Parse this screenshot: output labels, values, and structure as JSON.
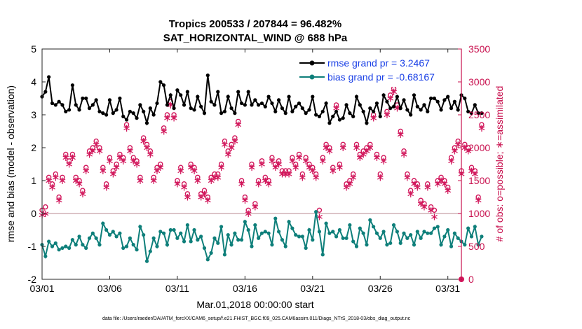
{
  "chart_data": {
    "type": "line",
    "title": "Tropics 200533 / 207844 = 96.482%",
    "subtitle": "SAT_HORIZONTAL_WIND @ 688 hPa",
    "xlabel": "Mar.01,2018 00:00:00 start",
    "ylabel": "rmse and bias (model - observation)",
    "y2label": "# of obs: o=possible; ∗=assimilated",
    "footer": "data file: /Users/raeder/DAI/ATM_forcXX/CAM6_setup/f.e21.FHIST_BGC.f09_025.CAM6assim.011/Diags_NTrS_2018-03/obs_diag_output.nc",
    "x_tick_labels": [
      "03/01",
      "03/06",
      "03/11",
      "03/16",
      "03/21",
      "03/26",
      "03/31"
    ],
    "x_tick_days": [
      0,
      5,
      10,
      15,
      20,
      25,
      30
    ],
    "xlim": [
      0,
      31
    ],
    "ylim": [
      -2,
      5
    ],
    "y_ticks": [
      "-2",
      "-1",
      "0",
      "1",
      "2",
      "3",
      "4",
      "5"
    ],
    "y2lim": [
      0,
      3500
    ],
    "y2_ticks": [
      "0",
      "500",
      "1000",
      "1500",
      "2000",
      "2500",
      "3000",
      "3500"
    ],
    "grid": false,
    "legend_position": "top-right",
    "colors": {
      "rmse": "#000000",
      "bias": "#0e7f7a",
      "obs": "#d1155a",
      "zero_line": "#c8a0a8",
      "legend_text": "#1a40e6"
    },
    "samples_per_day": 4,
    "series": [
      {
        "name": "rmse grand pr = 3.2467",
        "axis": "left",
        "values": [
          3.55,
          3.7,
          4.15,
          3.35,
          3.3,
          3.4,
          3.3,
          3.1,
          3.15,
          3.9,
          3.3,
          3.15,
          3.5,
          3.5,
          3.2,
          3.3,
          3.45,
          3.1,
          3.05,
          3.0,
          3.45,
          3.05,
          3.15,
          3.5,
          2.95,
          2.85,
          3.1,
          3.05,
          2.9,
          3.3,
          3.1,
          2.75,
          3.2,
          3.0,
          3.35,
          4.0,
          3.9,
          3.3,
          3.6,
          3.2,
          3.75,
          3.6,
          3.3,
          3.7,
          3.2,
          3.15,
          3.55,
          3.25,
          3.05,
          4.2,
          3.4,
          3.3,
          3.7,
          3.05,
          3.1,
          3.55,
          3.2,
          3.05,
          3.7,
          3.35,
          3.3,
          3.7,
          3.3,
          3.45,
          3.3,
          3.35,
          3.25,
          3.55,
          3.35,
          3.1,
          3.45,
          3.2,
          3.05,
          3.55,
          3.1,
          3.25,
          3.35,
          3.2,
          3.05,
          3.15,
          3.55,
          3.0,
          2.95,
          3.1,
          3.35,
          2.75,
          2.95,
          3.1,
          2.85,
          2.9,
          3.3,
          3.05,
          2.95,
          3.55,
          3.3,
          3.1,
          2.75,
          3.2,
          3.1,
          3.35,
          2.95,
          3.6,
          3.4,
          3.2,
          3.25,
          3.55,
          3.2,
          3.45,
          3.15,
          3.0,
          3.6,
          3.25,
          3.15,
          3.3,
          3.1,
          3.5,
          3.5,
          3.4,
          3.15,
          3.45,
          3.55,
          3.2,
          3.4,
          3.15,
          3.6,
          3.5,
          3.1,
          3.05,
          3.3,
          3.05,
          3.05
        ]
      },
      {
        "name": "bias grand pr = -0.68167",
        "axis": "left",
        "values": [
          -0.95,
          -1.3,
          -0.85,
          -1.0,
          -0.9,
          -1.1,
          -1.05,
          -1.0,
          -1.05,
          -0.8,
          -0.95,
          -0.7,
          -0.95,
          -1.05,
          -0.75,
          -0.6,
          -0.75,
          -0.95,
          -0.3,
          -0.5,
          -0.65,
          -0.55,
          -0.7,
          -0.6,
          -1.05,
          -1.0,
          -0.75,
          -0.95,
          -1.1,
          -0.4,
          -0.65,
          -1.45,
          -1.15,
          -0.75,
          -1.0,
          -0.55,
          -0.6,
          -0.95,
          -0.5,
          -0.5,
          -0.75,
          -0.6,
          -0.85,
          -0.35,
          -0.85,
          -0.5,
          -0.8,
          -0.7,
          -1.05,
          -1.4,
          -1.2,
          -0.75,
          -0.9,
          -0.4,
          -1.25,
          -0.65,
          -0.95,
          -0.6,
          -0.8,
          -0.8,
          -0.25,
          -0.5,
          -1.0,
          -0.35,
          -0.75,
          -0.6,
          -0.55,
          -0.6,
          -0.95,
          -0.15,
          -0.55,
          -0.8,
          -1.0,
          -0.25,
          -0.45,
          -0.65,
          -0.7,
          -0.7,
          -1.05,
          -0.5,
          -0.8,
          0.05,
          -0.55,
          -1.25,
          -0.3,
          -0.6,
          -0.55,
          -0.7,
          -0.5,
          -0.75,
          -0.75,
          -0.35,
          -0.85,
          -1.0,
          -0.45,
          -0.6,
          -0.95,
          -0.2,
          -0.4,
          -0.6,
          -0.75,
          -0.55,
          -0.95,
          -0.9,
          -0.35,
          -0.55,
          -0.9,
          -0.6,
          -0.75,
          -0.65,
          -0.95,
          -0.55,
          -0.75,
          -0.55,
          -0.6,
          -0.6,
          -0.45,
          -0.4,
          -0.95,
          -0.7,
          -0.5,
          -1.0,
          -0.6,
          -0.75,
          -0.85,
          -0.95,
          -0.45,
          -0.7,
          -0.4,
          -0.95,
          -0.7
        ]
      },
      {
        "name": "possible",
        "axis": "right",
        "marker": "o",
        "values": [
          1050,
          1100,
          1550,
          1450,
          1600,
          1250,
          1550,
          1900,
          1800,
          1900,
          1550,
          1500,
          1350,
          1700,
          1950,
          2000,
          2100,
          2000,
          1700,
          1450,
          1850,
          1650,
          1750,
          1900,
          1850,
          2350,
          2000,
          1850,
          1800,
          1550,
          2150,
          2050,
          1950,
          1550,
          1700,
          1750,
          2300,
          2500,
          2700,
          2500,
          1500,
          1700,
          1450,
          1300,
          1750,
          1700,
          1550,
          1300,
          1350,
          1250,
          1550,
          1600,
          1600,
          1750,
          2100,
          1950,
          2050,
          2150,
          2400,
          1500,
          1250,
          1050,
          1750,
          1150,
          1500,
          1800,
          1550,
          1500,
          1850,
          1750,
          1800,
          1650,
          1650,
          1650,
          1850,
          1750,
          1900,
          1600,
          1850,
          1750,
          1700,
          1600,
          1050,
          1850,
          2050,
          2000,
          1700,
          2650,
          1750,
          2050,
          1450,
          1500,
          1600,
          2050,
          1900,
          1950,
          2000,
          2050,
          2500,
          1900,
          1600,
          1850,
          2550,
          2800,
          2900,
          2650,
          2250,
          1950,
          1600,
          1350,
          1500,
          1450,
          1200,
          1150,
          1450,
          1100,
          1050,
          1500,
          1550,
          1500,
          1400,
          1850,
          2000,
          2100,
          1650,
          2050,
          2000,
          1700,
          1650,
          1250,
          2350
        ]
      },
      {
        "name": "assimilated",
        "axis": "right",
        "marker": "*",
        "values": [
          980,
          1000,
          1500,
          1400,
          1550,
          1200,
          1500,
          1850,
          1750,
          1850,
          1500,
          1450,
          1300,
          1650,
          1900,
          1950,
          2050,
          1950,
          1650,
          1400,
          1800,
          1600,
          1700,
          1850,
          1800,
          2300,
          1950,
          1800,
          1750,
          1500,
          2100,
          2000,
          1900,
          1500,
          1650,
          1700,
          2250,
          2450,
          2650,
          2450,
          1450,
          1650,
          1400,
          1250,
          1700,
          1650,
          1500,
          1250,
          1300,
          1200,
          1500,
          1550,
          1550,
          1700,
          2050,
          1900,
          2000,
          2100,
          2350,
          1450,
          1200,
          1000,
          1700,
          1100,
          1450,
          1750,
          1500,
          1450,
          1800,
          1700,
          1750,
          1600,
          1600,
          1600,
          1800,
          1700,
          1850,
          1550,
          1800,
          1700,
          1650,
          1550,
          950,
          1800,
          2000,
          1950,
          1650,
          2600,
          1700,
          2000,
          1400,
          1450,
          1550,
          2000,
          1850,
          1900,
          1950,
          2000,
          2450,
          1850,
          1550,
          1800,
          2500,
          2750,
          2850,
          2600,
          2200,
          1900,
          1550,
          1300,
          1450,
          1400,
          1150,
          1100,
          1400,
          1050,
          950,
          1450,
          1500,
          1450,
          1350,
          1800,
          1950,
          2050,
          1600,
          2000,
          1950,
          1650,
          1600,
          1200,
          2300
        ]
      }
    ]
  }
}
